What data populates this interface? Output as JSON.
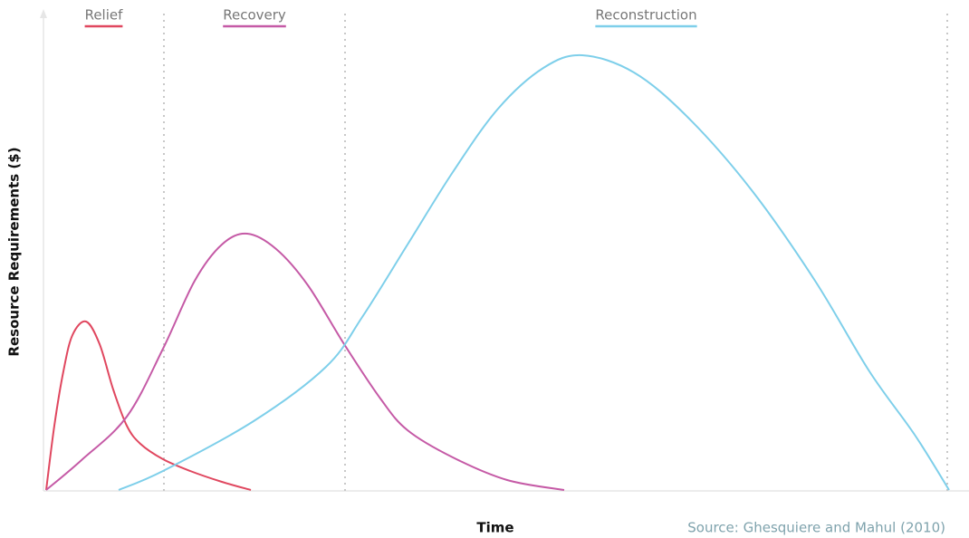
{
  "chart_data": {
    "type": "line",
    "x_label": "Time",
    "y_label": "Resource Requirements ($)",
    "source": "Source: Ghesquiere and Mahul (2010)",
    "xlim": [
      0,
      1000
    ],
    "ylim": [
      0,
      500
    ],
    "phase_boundaries": [
      133,
      333,
      998
    ],
    "series": [
      {
        "name": "Relief",
        "color": "#e0475f",
        "x": [
          3,
          12,
          22,
          32,
          47,
          62,
          77,
          92,
          107,
          132,
          162,
          197,
          229
        ],
        "values": [
          1,
          72,
          132,
          172,
          187,
          162,
          112,
          72,
          52,
          35,
          22,
          10,
          1
        ]
      },
      {
        "name": "Recovery",
        "color": "#c55aa6",
        "x": [
          3,
          42,
          92,
          132,
          167,
          197,
          225,
          257,
          292,
          332,
          372,
          402,
          452,
          512,
          575
        ],
        "values": [
          1,
          34,
          82,
          157,
          232,
          272,
          284,
          267,
          227,
          162,
          102,
          67,
          37,
          12,
          1
        ]
      },
      {
        "name": "Reconstruction",
        "color": "#7ecfea",
        "x": [
          83,
          132,
          232,
          312,
          352,
          402,
          452,
          502,
          552,
          595,
          652,
          712,
          782,
          852,
          912,
          962,
          1000
        ],
        "values": [
          1,
          22,
          77,
          137,
          192,
          272,
          352,
          422,
          467,
          481,
          462,
          412,
          332,
          232,
          132,
          62,
          1
        ]
      }
    ]
  }
}
